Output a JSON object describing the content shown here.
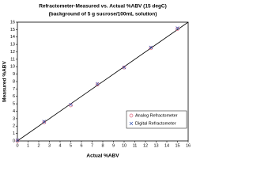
{
  "chart_data": {
    "type": "scatter",
    "title": "Refractometer-Measured vs. Actual %ABV (15 degC)",
    "subtitle": "(background of 5 g sucrose/100mL solution)",
    "x_label": "Actual %ABV",
    "y_label": "Measured %ABV",
    "xlim": [
      0,
      16
    ],
    "ylim": [
      0,
      16
    ],
    "xticks": [
      0,
      1,
      2,
      3,
      4,
      5,
      6,
      7,
      8,
      9,
      10,
      11,
      12,
      13,
      14,
      15,
      16
    ],
    "yticks": [
      0,
      1,
      2,
      3,
      4,
      5,
      6,
      7,
      8,
      9,
      10,
      11,
      12,
      13,
      14,
      15,
      16
    ],
    "legend": "lower-right",
    "series": [
      {
        "name": "Analog Refractometer",
        "color": "#e0607a",
        "marker": "circle",
        "x": [
          0,
          2.5,
          5,
          7.5,
          10,
          12.5,
          15
        ],
        "values": [
          0,
          2.5,
          4.8,
          7.6,
          9.9,
          12.5,
          15.1
        ]
      },
      {
        "name": "Digital Refractometer",
        "color": "#3050b0",
        "marker": "x",
        "x": [
          0,
          2.5,
          5,
          7.5,
          10,
          12.5,
          15
        ],
        "values": [
          0.1,
          2.6,
          4.9,
          7.7,
          9.9,
          12.6,
          15.2
        ]
      }
    ]
  }
}
